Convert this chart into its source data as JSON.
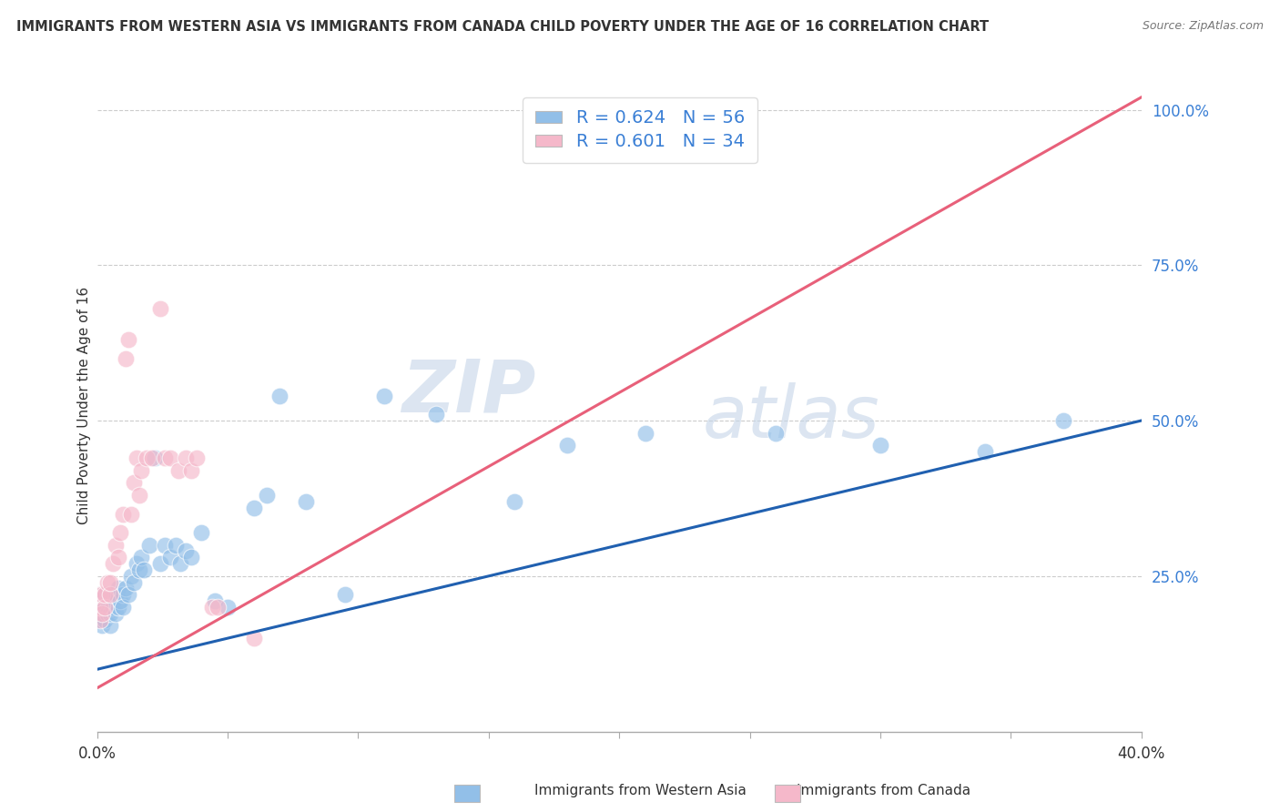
{
  "title": "IMMIGRANTS FROM WESTERN ASIA VS IMMIGRANTS FROM CANADA CHILD POVERTY UNDER THE AGE OF 16 CORRELATION CHART",
  "source": "Source: ZipAtlas.com",
  "ylabel": "Child Poverty Under the Age of 16",
  "legend_label_blue": "Immigrants from Western Asia",
  "legend_label_pink": "Immigrants from Canada",
  "R_blue": 0.624,
  "N_blue": 56,
  "R_pink": 0.601,
  "N_pink": 34,
  "blue_color": "#92bfe8",
  "pink_color": "#f5b8ca",
  "line_blue": "#2060b0",
  "line_pink": "#e8607a",
  "watermark_zip": "ZIP",
  "watermark_atlas": "atlas",
  "xlim": [
    0.0,
    0.4
  ],
  "ylim": [
    0.0,
    1.05
  ],
  "blue_trend_x0": 0.0,
  "blue_trend_y0": 0.1,
  "blue_trend_x1": 0.4,
  "blue_trend_y1": 0.5,
  "pink_trend_x0": 0.0,
  "pink_trend_y0": 0.07,
  "pink_trend_x1": 0.4,
  "pink_trend_y1": 1.02,
  "blue_pts_x": [
    0.001,
    0.001,
    0.001,
    0.002,
    0.002,
    0.002,
    0.003,
    0.003,
    0.003,
    0.004,
    0.004,
    0.005,
    0.005,
    0.006,
    0.006,
    0.007,
    0.007,
    0.008,
    0.008,
    0.009,
    0.01,
    0.01,
    0.011,
    0.012,
    0.013,
    0.014,
    0.015,
    0.016,
    0.017,
    0.018,
    0.02,
    0.022,
    0.024,
    0.026,
    0.028,
    0.03,
    0.032,
    0.034,
    0.036,
    0.04,
    0.045,
    0.05,
    0.06,
    0.065,
    0.07,
    0.08,
    0.095,
    0.11,
    0.13,
    0.16,
    0.18,
    0.21,
    0.26,
    0.3,
    0.34,
    0.37
  ],
  "blue_pts_y": [
    0.18,
    0.2,
    0.22,
    0.17,
    0.19,
    0.21,
    0.18,
    0.2,
    0.22,
    0.19,
    0.21,
    0.17,
    0.19,
    0.2,
    0.22,
    0.19,
    0.22,
    0.2,
    0.23,
    0.21,
    0.22,
    0.2,
    0.23,
    0.22,
    0.25,
    0.24,
    0.27,
    0.26,
    0.28,
    0.26,
    0.3,
    0.44,
    0.27,
    0.3,
    0.28,
    0.3,
    0.27,
    0.29,
    0.28,
    0.32,
    0.21,
    0.2,
    0.36,
    0.38,
    0.54,
    0.37,
    0.22,
    0.54,
    0.51,
    0.37,
    0.46,
    0.48,
    0.48,
    0.46,
    0.45,
    0.5
  ],
  "pink_pts_x": [
    0.001,
    0.001,
    0.001,
    0.002,
    0.002,
    0.003,
    0.003,
    0.004,
    0.005,
    0.005,
    0.006,
    0.007,
    0.008,
    0.009,
    0.01,
    0.011,
    0.012,
    0.013,
    0.014,
    0.015,
    0.016,
    0.017,
    0.019,
    0.021,
    0.024,
    0.026,
    0.028,
    0.031,
    0.034,
    0.036,
    0.038,
    0.044,
    0.046,
    0.06
  ],
  "pink_pts_y": [
    0.18,
    0.2,
    0.22,
    0.19,
    0.22,
    0.2,
    0.22,
    0.24,
    0.22,
    0.24,
    0.27,
    0.3,
    0.28,
    0.32,
    0.35,
    0.6,
    0.63,
    0.35,
    0.4,
    0.44,
    0.38,
    0.42,
    0.44,
    0.44,
    0.68,
    0.44,
    0.44,
    0.42,
    0.44,
    0.42,
    0.44,
    0.2,
    0.2,
    0.15
  ]
}
